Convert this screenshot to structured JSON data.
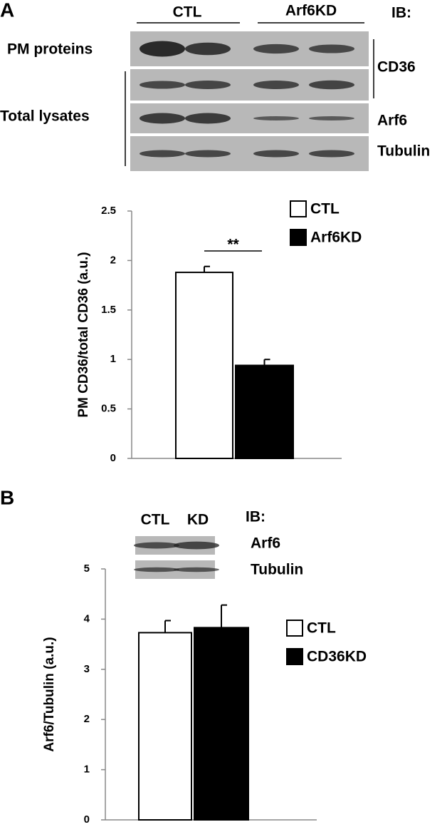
{
  "panel_a": {
    "label": "A",
    "blot": {
      "groups": [
        "CTL",
        "Arf6KD"
      ],
      "ib": "IB:",
      "row_labels": [
        "PM proteins",
        "Total lysates"
      ],
      "antibodies": [
        "CD36",
        "Arf6",
        "Tubulin"
      ]
    }
  },
  "panel_b": {
    "label": "B",
    "blot": {
      "lanes": [
        "CTL",
        "KD"
      ],
      "ib": "IB:",
      "antibodies": [
        "Arf6",
        "Tubulin"
      ]
    }
  },
  "chart_data": [
    {
      "type": "bar",
      "y_label": "PM CD36/total CD36 (a.u.)",
      "categories": [
        null
      ],
      "series": [
        {
          "name": "CTL",
          "color": "#ffffff",
          "values": [
            1.88
          ],
          "errors": [
            0.06
          ]
        },
        {
          "name": "Arf6KD",
          "color": "#000000",
          "values": [
            0.94
          ],
          "errors": [
            0.06
          ]
        }
      ],
      "ylim": [
        0,
        2.5
      ],
      "yticks": [
        0,
        0.5,
        1,
        1.5,
        2,
        2.5
      ],
      "annotation": "**",
      "legend": "upper right"
    },
    {
      "type": "bar",
      "y_label": "Arf6/Tubulin (a.u.)",
      "categories": [
        null
      ],
      "series": [
        {
          "name": "CTL",
          "color": "#ffffff",
          "values": [
            3.73
          ],
          "errors": [
            0.24
          ]
        },
        {
          "name": "CD36KD",
          "color": "#000000",
          "values": [
            3.83
          ],
          "errors": [
            0.45
          ]
        }
      ],
      "ylim": [
        0,
        5
      ],
      "yticks": [
        0,
        1,
        2,
        3,
        4,
        5
      ],
      "legend": "right"
    }
  ]
}
